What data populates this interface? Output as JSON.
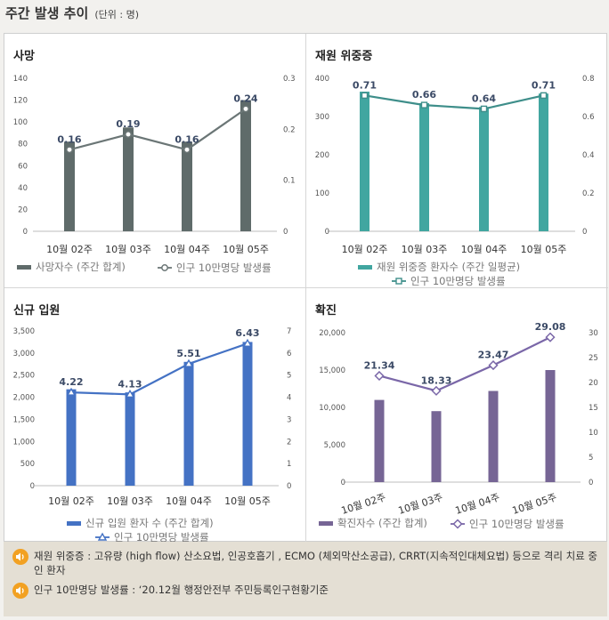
{
  "header": {
    "title": "주간 발생 추이",
    "unit": "(단위 : 명)"
  },
  "colors": {
    "deaths": "#5f6b6a",
    "severe": "#41a6a0",
    "admissions": "#4472c4",
    "confirmed": "#766595",
    "line_gray": "#6b7676",
    "line_teal": "#3e8e8a",
    "line_blue": "#4472c4",
    "line_purple": "#7a67a8"
  },
  "chart_data": [
    {
      "type": "bar",
      "title": "사망",
      "categories": [
        "10월 02주",
        "10월 03주",
        "10월 04주",
        "10월 05주"
      ],
      "series": [
        {
          "name": "사망자수 (주간 합계)",
          "kind": "bar",
          "axis": "left",
          "values": [
            82,
            95,
            82,
            120
          ]
        },
        {
          "name": "인구 10만명당 발생률",
          "kind": "line",
          "axis": "right",
          "values": [
            0.16,
            0.19,
            0.16,
            0.24
          ],
          "labels": [
            "0.16",
            "0.19",
            "0.16",
            "0.24"
          ]
        }
      ],
      "ylim": [
        0,
        140
      ],
      "yticks": [
        0,
        20,
        40,
        60,
        80,
        100,
        120,
        140
      ],
      "ytick_labels": [
        "0",
        "20",
        "40",
        "60",
        "80",
        "100",
        "120",
        "140"
      ],
      "y2lim": [
        0,
        0.3
      ],
      "y2ticks": [
        0,
        0.1,
        0.2,
        0.3
      ],
      "y2tick_labels": [
        "0",
        "0.1",
        "0.2",
        "0.3"
      ],
      "legend_bar": "사망자수 (주간 합계)",
      "legend_line": "인구 10만명당 발생률"
    },
    {
      "type": "bar",
      "title": "재원 위중증",
      "categories": [
        "10월 02주",
        "10월 03주",
        "10월 04주",
        "10월 05주"
      ],
      "series": [
        {
          "name": "재원 위중증 환자수 (주간 일평균)",
          "kind": "bar",
          "axis": "left",
          "values": [
            365,
            335,
            325,
            360
          ]
        },
        {
          "name": "인구 10만명당 발생률",
          "kind": "line",
          "axis": "right",
          "values": [
            0.71,
            0.66,
            0.64,
            0.71
          ],
          "labels": [
            "0.71",
            "0.66",
            "0.64",
            "0.71"
          ]
        }
      ],
      "ylim": [
        0,
        400
      ],
      "yticks": [
        0,
        100,
        200,
        300,
        400
      ],
      "ytick_labels": [
        "0",
        "100",
        "200",
        "300",
        "400"
      ],
      "y2lim": [
        0,
        0.8
      ],
      "y2ticks": [
        0,
        0.2,
        0.4,
        0.6,
        0.8
      ],
      "y2tick_labels": [
        "0",
        "0.2",
        "0.4",
        "0.6",
        "0.8"
      ],
      "legend_bar": "재원 위중증 환자수 (주간 일평균)",
      "legend_line": "인구 10만명당 발생률"
    },
    {
      "type": "bar",
      "title": "신규 입원",
      "categories": [
        "10월 02주",
        "10월 03주",
        "10월 04주",
        "10월 05주"
      ],
      "series": [
        {
          "name": "신규 입원 환자 수 (주간 합계)",
          "kind": "bar",
          "axis": "left",
          "values": [
            2180,
            2110,
            2800,
            3250
          ]
        },
        {
          "name": "인구 10만명당 발생률",
          "kind": "line",
          "axis": "right",
          "values": [
            4.22,
            4.13,
            5.51,
            6.43
          ],
          "labels": [
            "4.22",
            "4.13",
            "5.51",
            "6.43"
          ]
        }
      ],
      "ylim": [
        0,
        3500
      ],
      "yticks": [
        0,
        500,
        1000,
        1500,
        2000,
        2500,
        3000,
        3500
      ],
      "ytick_labels": [
        "0",
        "500",
        "1,000",
        "1,500",
        "2,000",
        "2,500",
        "3,000",
        "3,500"
      ],
      "y2lim": [
        0,
        7
      ],
      "y2ticks": [
        0,
        1,
        2,
        3,
        4,
        5,
        6,
        7
      ],
      "y2tick_labels": [
        "0",
        "1",
        "2",
        "3",
        "4",
        "5",
        "6",
        "7"
      ],
      "legend_bar": "신규 입원 환자 수 (주간 합계)",
      "legend_line": "인구 10만명당 발생률"
    },
    {
      "type": "bar",
      "title": "확진",
      "categories": [
        "10월 02주",
        "10월 03주",
        "10월 04주",
        "10월 05주"
      ],
      "series": [
        {
          "name": "확진자수 (주간 합계)",
          "kind": "bar",
          "axis": "left",
          "values": [
            11000,
            9500,
            12200,
            15000
          ]
        },
        {
          "name": "인구 10만명당 발생률",
          "kind": "line",
          "axis": "right",
          "values": [
            21.34,
            18.33,
            23.47,
            29.08
          ],
          "labels": [
            "21.34",
            "18.33",
            "23.47",
            "29.08"
          ]
        }
      ],
      "ylim": [
        0,
        20000
      ],
      "yticks": [
        0,
        5000,
        10000,
        15000,
        20000
      ],
      "ytick_labels": [
        "0",
        "5,000",
        "10,000",
        "15,000",
        "20,000"
      ],
      "y2lim": [
        0,
        30
      ],
      "y2ticks": [
        0,
        5,
        10,
        15,
        20,
        25,
        30
      ],
      "y2tick_labels": [
        "0",
        "5",
        "10",
        "15",
        "20",
        "25",
        "30"
      ],
      "legend_bar": "확진자수 (주간 합계)",
      "legend_line": "인구 10만명당 발생률"
    }
  ],
  "notes": [
    {
      "text": "재원 위중증 : 고유량 (high flow) 산소요법, 인공호흡기 , ECMO (체외막산소공급), CRRT(지속적인대체요법) 등으로 격리 치료 중인 환자"
    },
    {
      "text": "인구 10만명당 발생률 : ‘20.12월 행정안전부 주민등록인구현황기준"
    }
  ]
}
